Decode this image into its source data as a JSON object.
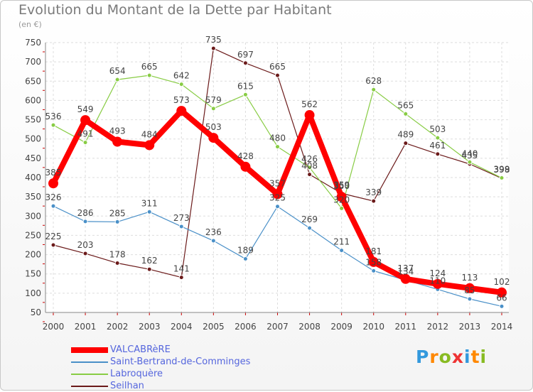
{
  "chart_data": {
    "type": "line",
    "title": "Evolution du Montant de la Dette par Habitant",
    "subtitle": "(en €)",
    "x": [
      "2000",
      "2001",
      "2002",
      "2003",
      "2004",
      "2005",
      "2006",
      "2007",
      "2008",
      "2009",
      "2010",
      "2011",
      "2012",
      "2013",
      "2014"
    ],
    "ylim": [
      50,
      750
    ],
    "yticks": [
      50,
      100,
      150,
      200,
      250,
      300,
      350,
      400,
      450,
      500,
      550,
      600,
      650,
      700,
      750
    ],
    "grid": true,
    "legend_position": "bottom-left",
    "series": [
      {
        "name": "VALCABRèRE",
        "color": "#ff0000",
        "values": [
          385,
          549,
          493,
          484,
          573,
          503,
          428,
          357,
          562,
          350,
          181,
          137,
          124,
          113,
          102
        ],
        "labels": [
          "385",
          "549",
          "493",
          "484",
          "573",
          "503",
          "428",
          "357",
          "562",
          "350",
          "181",
          "137",
          "124",
          "113",
          "102"
        ]
      },
      {
        "name": "Saint-Bertrand-de-Comminges",
        "color": "#4a90c8",
        "values": [
          326,
          286,
          285,
          311,
          273,
          236,
          189,
          325,
          269,
          211,
          158,
          134,
          110,
          85,
          66
        ],
        "labels": [
          "326",
          "286",
          "285",
          "311",
          "273",
          "236",
          "189",
          "325",
          "269",
          "211",
          "158",
          "134",
          "110",
          "85",
          "66"
        ]
      },
      {
        "name": "Labroquère",
        "color": "#88cc44",
        "values": [
          536,
          491,
          654,
          665,
          642,
          579,
          615,
          480,
          426,
          320,
          628,
          565,
          503,
          440,
          399
        ],
        "labels": [
          "536",
          "491",
          "654",
          "665",
          "642",
          "579",
          "615",
          "480",
          "426",
          "320",
          "628",
          "565",
          "503",
          "440",
          "399"
        ]
      },
      {
        "name": "Seilhan",
        "color": "#6b1a1a",
        "values": [
          225,
          203,
          178,
          162,
          141,
          735,
          697,
          665,
          408,
          359,
          339,
          489,
          461,
          435,
          398
        ],
        "labels": [
          "225",
          "203",
          "178",
          "162",
          "141",
          "735",
          "697",
          "665",
          "408",
          "359",
          "339",
          "489",
          "461",
          "435",
          "398"
        ]
      }
    ]
  },
  "logo": {
    "letters": [
      "P",
      "r",
      "o",
      "x",
      "i",
      "t",
      "i"
    ],
    "colors": [
      "#3399dd",
      "#ff8800",
      "#88bb22",
      "#ee3333",
      "#3399dd",
      "#ff8800",
      "#88bb22"
    ]
  }
}
